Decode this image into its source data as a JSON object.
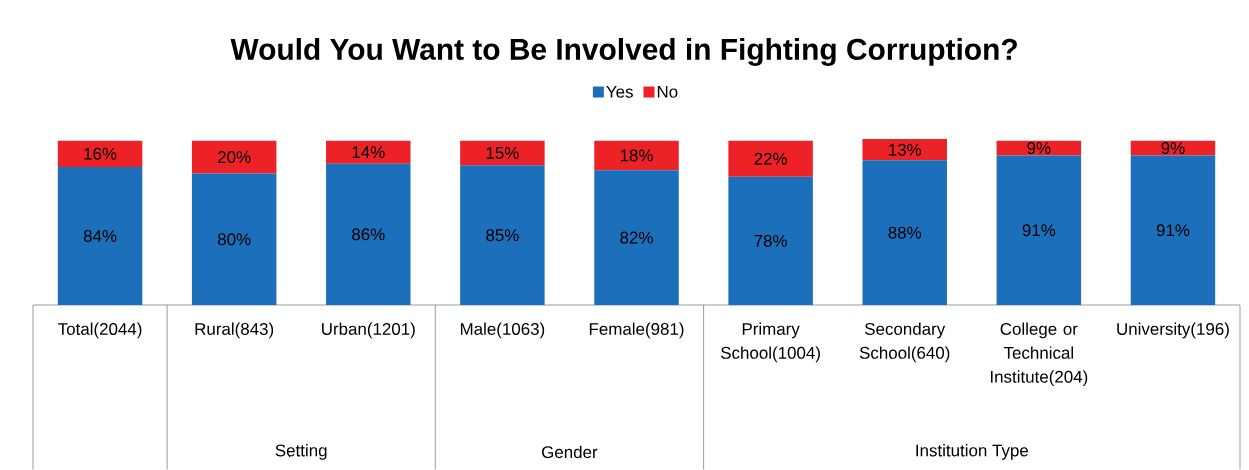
{
  "chart_data": {
    "type": "bar",
    "stacked": true,
    "title": "Would You Want to Be Involved in Fighting Corruption?",
    "categories": [
      "Total(2044)",
      "Rural(843)",
      "Urban(1201)",
      "Male(1063)",
      "Female(981)",
      "Primary School(1004)",
      "Secondary School(640)",
      "College or Technical Institute(204)",
      "University(196)"
    ],
    "series": [
      {
        "name": "Yes",
        "color": "#1c6fba",
        "values": [
          84,
          80,
          86,
          85,
          82,
          78,
          88,
          91,
          91
        ],
        "value_labels": [
          "84%",
          "80%",
          "86%",
          "85%",
          "82%",
          "78%",
          "88%",
          "91%",
          "91%"
        ]
      },
      {
        "name": "No",
        "color": "#ec2227",
        "values": [
          16,
          20,
          14,
          15,
          18,
          22,
          13,
          9,
          9
        ],
        "value_labels": [
          "16%",
          "20%",
          "14%",
          "15%",
          "18%",
          "22%",
          "13%",
          "9%",
          "9%"
        ]
      }
    ],
    "tick_labels": "x",
    "legend": "top",
    "annotations": [
      "Setting",
      "Gender",
      "Institution Type"
    ]
  }
}
